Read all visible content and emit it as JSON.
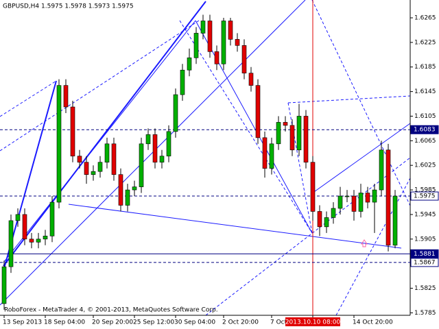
{
  "chart_data": {
    "type": "candlestick",
    "title": "GBPUSD,H4  1.5975 1.5978 1.5973 1.5975",
    "footer": "RoboForex - MetaTrader 4, © 2001-2013, MetaQuotes Software Corp.",
    "categories": [
      "13 Sep 2013",
      null,
      null,
      null,
      null,
      null,
      "18 Sep 04:00",
      null,
      null,
      null,
      null,
      null,
      null,
      "20 Sep 20:00",
      null,
      null,
      null,
      null,
      null,
      "25 Sep 12:00",
      null,
      null,
      null,
      null,
      null,
      "30 Sep 04:00",
      null,
      null,
      null,
      null,
      null,
      null,
      "2 Oct 20:00",
      null,
      null,
      null,
      null,
      null,
      null,
      "7 Oct",
      null,
      null,
      null,
      null,
      null,
      "2013.10.10 08:00",
      null,
      null,
      null,
      null,
      null,
      "14 Oct 20:00",
      null,
      null,
      null,
      null,
      null,
      null
    ],
    "open": [
      1.58,
      1.586,
      1.5935,
      1.5945,
      1.5905,
      1.59,
      1.5905,
      1.591,
      1.5965,
      1.6155,
      1.612,
      1.604,
      1.603,
      1.601,
      1.6015,
      1.603,
      1.606,
      1.601,
      1.596,
      1.5985,
      1.599,
      1.606,
      1.6075,
      1.603,
      1.604,
      1.608,
      1.614,
      1.618,
      1.62,
      1.624,
      1.626,
      1.621,
      1.619,
      1.626,
      1.623,
      1.622,
      1.6175,
      1.6155,
      1.607,
      1.602,
      1.606,
      1.6095,
      1.609,
      1.605,
      1.6105,
      1.603,
      1.595,
      1.5925,
      1.594,
      1.5955,
      1.5975,
      1.5975,
      1.595,
      1.598,
      1.5965,
      1.5985,
      1.605,
      1.5895
    ],
    "high": [
      1.587,
      1.5945,
      1.5955,
      1.5955,
      1.5915,
      1.5915,
      1.592,
      1.5975,
      1.6165,
      1.6165,
      1.613,
      1.605,
      1.604,
      1.6025,
      1.604,
      1.607,
      1.607,
      1.602,
      1.5995,
      1.6,
      1.607,
      1.6085,
      1.6085,
      1.605,
      1.609,
      1.615,
      1.619,
      1.6215,
      1.625,
      1.627,
      1.627,
      1.622,
      1.6265,
      1.6265,
      1.624,
      1.623,
      1.6185,
      1.6165,
      1.608,
      1.607,
      1.6105,
      1.6105,
      1.61,
      1.6125,
      1.6115,
      1.604,
      1.596,
      1.595,
      1.5965,
      1.599,
      1.5985,
      1.5985,
      1.5995,
      1.599,
      1.5995,
      1.6065,
      1.606,
      1.5985
    ],
    "low": [
      1.579,
      1.585,
      1.5925,
      1.5895,
      1.589,
      1.589,
      1.5895,
      1.59,
      1.5955,
      1.611,
      1.603,
      1.602,
      1.5995,
      1.6,
      1.6005,
      1.602,
      1.6,
      1.595,
      1.595,
      1.5975,
      1.598,
      1.605,
      1.602,
      1.602,
      1.603,
      1.607,
      1.613,
      1.617,
      1.619,
      1.623,
      1.62,
      1.618,
      1.618,
      1.622,
      1.621,
      1.6165,
      1.6145,
      1.606,
      1.6005,
      1.601,
      1.605,
      1.608,
      1.604,
      1.604,
      1.602,
      1.5935,
      1.591,
      1.5915,
      1.593,
      1.5945,
      1.5965,
      1.5935,
      1.594,
      1.5955,
      1.5915,
      1.5975,
      1.5885,
      1.589
    ],
    "close": [
      1.586,
      1.5935,
      1.5945,
      1.5905,
      1.59,
      1.5905,
      1.591,
      1.5965,
      1.6155,
      1.612,
      1.604,
      1.603,
      1.601,
      1.6015,
      1.603,
      1.606,
      1.601,
      1.596,
      1.5985,
      1.599,
      1.606,
      1.6075,
      1.603,
      1.604,
      1.608,
      1.614,
      1.618,
      1.62,
      1.624,
      1.626,
      1.621,
      1.619,
      1.626,
      1.623,
      1.622,
      1.6175,
      1.6155,
      1.607,
      1.602,
      1.606,
      1.6095,
      1.609,
      1.605,
      1.6105,
      1.603,
      1.595,
      1.5925,
      1.594,
      1.5955,
      1.5975,
      1.5975,
      1.595,
      1.598,
      1.5965,
      1.5985,
      1.605,
      1.5895,
      1.5975
    ],
    "up_color": "#00b000",
    "down_color": "#e00000",
    "ylim": [
      1.5781,
      1.6294
    ],
    "yticks": [
      1.6265,
      1.6225,
      1.6185,
      1.6145,
      1.6105,
      1.6065,
      1.6025,
      1.5985,
      1.5945,
      1.5905,
      1.5825,
      1.5785
    ],
    "levels": [
      1.6083,
      1.5975,
      1.5881,
      1.5867
    ],
    "level_filled": [
      true,
      false,
      true,
      false
    ],
    "highlight_index": 45
  }
}
